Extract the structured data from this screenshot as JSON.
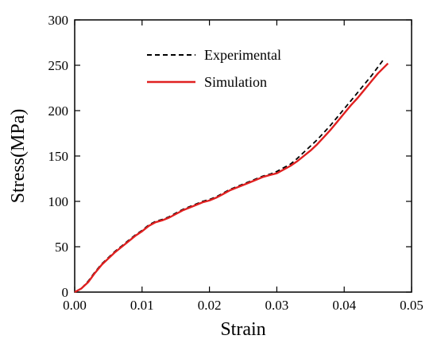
{
  "chart_data": {
    "type": "line",
    "title": "",
    "xlabel": "Strain",
    "ylabel": "Stress(MPa)",
    "xlim": [
      0.0,
      0.05
    ],
    "ylim": [
      0,
      300
    ],
    "xticks": [
      0.0,
      0.01,
      0.02,
      0.03,
      0.04,
      0.05
    ],
    "xtick_labels": [
      "0.00",
      "0.01",
      "0.02",
      "0.03",
      "0.04",
      "0.05"
    ],
    "yticks": [
      0,
      50,
      100,
      150,
      200,
      250,
      300
    ],
    "ytick_labels": [
      "0",
      "50",
      "100",
      "150",
      "200",
      "250",
      "300"
    ],
    "grid": false,
    "legend_position": "top-center",
    "series": [
      {
        "name": "Experimental",
        "style": "dashed",
        "color": "#000000",
        "x": [
          0.0,
          0.001,
          0.002,
          0.003,
          0.004,
          0.005,
          0.006,
          0.007,
          0.008,
          0.009,
          0.01,
          0.011,
          0.012,
          0.013,
          0.014,
          0.015,
          0.016,
          0.017,
          0.018,
          0.019,
          0.02,
          0.021,
          0.022,
          0.023,
          0.024,
          0.025,
          0.026,
          0.027,
          0.028,
          0.029,
          0.03,
          0.031,
          0.032,
          0.033,
          0.034,
          0.035,
          0.036,
          0.037,
          0.038,
          0.039,
          0.04,
          0.041,
          0.042,
          0.043,
          0.044,
          0.045,
          0.046
        ],
        "y": [
          0,
          4,
          12,
          22,
          31,
          38,
          45,
          51,
          57,
          63,
          68,
          74,
          78,
          80,
          83,
          87,
          91,
          94,
          97,
          100,
          102,
          105,
          109,
          113,
          116,
          119,
          122,
          125,
          128,
          130,
          133,
          137,
          141,
          147,
          154,
          161,
          168,
          176,
          184,
          193,
          202,
          211,
          220,
          229,
          238,
          248,
          258
        ]
      },
      {
        "name": "Simulation",
        "style": "solid",
        "color": "#e02020",
        "x": [
          0.0,
          0.001,
          0.002,
          0.003,
          0.004,
          0.005,
          0.006,
          0.007,
          0.008,
          0.009,
          0.01,
          0.011,
          0.012,
          0.013,
          0.014,
          0.015,
          0.016,
          0.017,
          0.018,
          0.019,
          0.02,
          0.021,
          0.022,
          0.023,
          0.024,
          0.025,
          0.026,
          0.027,
          0.028,
          0.029,
          0.03,
          0.031,
          0.032,
          0.033,
          0.034,
          0.035,
          0.036,
          0.037,
          0.038,
          0.039,
          0.04,
          0.041,
          0.042,
          0.043,
          0.044,
          0.045,
          0.0465
        ],
        "y": [
          0,
          4,
          11,
          21,
          30,
          37,
          44,
          50,
          56,
          62,
          67,
          73,
          77,
          79,
          82,
          86,
          90,
          93,
          96,
          99,
          101,
          104,
          108,
          112,
          115,
          118,
          121,
          124,
          127,
          129,
          131,
          135,
          139,
          144,
          150,
          156,
          163,
          171,
          179,
          188,
          197,
          206,
          214,
          223,
          232,
          241,
          252
        ]
      }
    ]
  }
}
